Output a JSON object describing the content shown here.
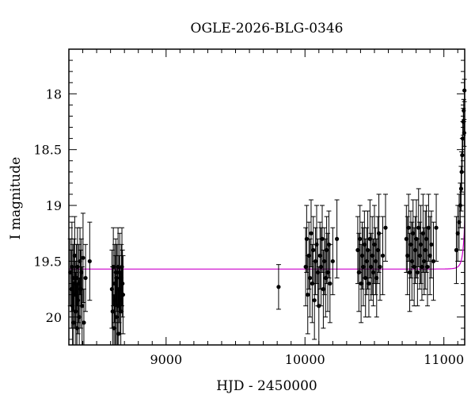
{
  "chart_data": {
    "type": "scatter",
    "title": "OGLE-2026-BLG-0346",
    "xlabel": "HJD - 2450000",
    "ylabel": "I magnitude",
    "xlim": [
      8300,
      11150
    ],
    "ylim": [
      20.25,
      17.6
    ],
    "y_inverted": true,
    "x_ticks": [
      9000,
      10000,
      11000
    ],
    "y_ticks": [
      18,
      18.5,
      19,
      19.5,
      20
    ],
    "colors": {
      "data": "#000000",
      "model": "#cc00cc",
      "frame": "#000000"
    },
    "model": {
      "baseline": 19.57,
      "t0": 11170,
      "tE": 24,
      "u0": 0.1
    },
    "series": [
      {
        "type": "errorbar",
        "points": [
          [
            8310,
            19.6,
            0.3
          ],
          [
            8318,
            19.75,
            0.35
          ],
          [
            8322,
            19.55,
            0.4
          ],
          [
            8326,
            19.9,
            0.35
          ],
          [
            8330,
            19.65,
            0.3
          ],
          [
            8334,
            20.05,
            0.35
          ],
          [
            8338,
            19.7,
            0.4
          ],
          [
            8342,
            19.45,
            0.35
          ],
          [
            8346,
            19.8,
            0.3
          ],
          [
            8350,
            19.95,
            0.35
          ],
          [
            8354,
            19.65,
            0.3
          ],
          [
            8358,
            20.1,
            0.4
          ],
          [
            8362,
            19.55,
            0.35
          ],
          [
            8366,
            19.85,
            0.3
          ],
          [
            8370,
            19.7,
            0.35
          ],
          [
            8375,
            20.0,
            0.35
          ],
          [
            8380,
            19.5,
            0.3
          ],
          [
            8385,
            19.75,
            0.35
          ],
          [
            8390,
            19.6,
            0.3
          ],
          [
            8395,
            19.9,
            0.35
          ],
          [
            8402,
            19.47,
            0.4
          ],
          [
            8408,
            20.05,
            0.3
          ],
          [
            8420,
            19.65,
            0.3
          ],
          [
            8450,
            19.5,
            0.35
          ],
          [
            8610,
            19.75,
            0.35
          ],
          [
            8615,
            19.95,
            0.4
          ],
          [
            8620,
            19.55,
            0.35
          ],
          [
            8625,
            20.1,
            0.3
          ],
          [
            8630,
            19.7,
            0.35
          ],
          [
            8634,
            19.85,
            0.4
          ],
          [
            8638,
            19.6,
            0.3
          ],
          [
            8642,
            20.0,
            0.35
          ],
          [
            8646,
            19.65,
            0.3
          ],
          [
            8650,
            19.9,
            0.35
          ],
          [
            8654,
            19.55,
            0.35
          ],
          [
            8658,
            20.15,
            0.4
          ],
          [
            8662,
            19.75,
            0.3
          ],
          [
            8666,
            19.6,
            0.35
          ],
          [
            8670,
            19.85,
            0.3
          ],
          [
            8674,
            19.95,
            0.35
          ],
          [
            8678,
            19.65,
            0.3
          ],
          [
            8682,
            19.55,
            0.35
          ],
          [
            8686,
            19.7,
            0.3
          ],
          [
            8690,
            19.8,
            0.35
          ],
          [
            9810,
            19.73,
            0.2
          ],
          [
            10005,
            19.55,
            0.35
          ],
          [
            10012,
            19.3,
            0.3
          ],
          [
            10020,
            19.8,
            0.35
          ],
          [
            10028,
            19.45,
            0.3
          ],
          [
            10036,
            19.65,
            0.35
          ],
          [
            10044,
            19.25,
            0.3
          ],
          [
            10052,
            19.7,
            0.35
          ],
          [
            10060,
            19.4,
            0.3
          ],
          [
            10068,
            19.85,
            0.35
          ],
          [
            10076,
            19.5,
            0.3
          ],
          [
            10084,
            19.35,
            0.35
          ],
          [
            10092,
            19.6,
            0.3
          ],
          [
            10100,
            19.9,
            0.35
          ],
          [
            10108,
            19.45,
            0.3
          ],
          [
            10116,
            19.55,
            0.35
          ],
          [
            10124,
            19.3,
            0.3
          ],
          [
            10132,
            19.75,
            0.35
          ],
          [
            10140,
            19.5,
            0.3
          ],
          [
            10148,
            19.65,
            0.35
          ],
          [
            10156,
            19.4,
            0.3
          ],
          [
            10164,
            19.6,
            0.35
          ],
          [
            10172,
            19.35,
            0.3
          ],
          [
            10180,
            19.7,
            0.35
          ],
          [
            10200,
            19.5,
            0.3
          ],
          [
            10230,
            19.3,
            0.35
          ],
          [
            10380,
            19.4,
            0.3
          ],
          [
            10388,
            19.6,
            0.35
          ],
          [
            10396,
            19.3,
            0.3
          ],
          [
            10404,
            19.7,
            0.35
          ],
          [
            10412,
            19.45,
            0.3
          ],
          [
            10420,
            19.55,
            0.35
          ],
          [
            10428,
            19.35,
            0.3
          ],
          [
            10436,
            19.65,
            0.35
          ],
          [
            10444,
            19.5,
            0.3
          ],
          [
            10452,
            19.4,
            0.35
          ],
          [
            10460,
            19.7,
            0.3
          ],
          [
            10468,
            19.3,
            0.35
          ],
          [
            10476,
            19.55,
            0.3
          ],
          [
            10484,
            19.45,
            0.35
          ],
          [
            10492,
            19.6,
            0.3
          ],
          [
            10500,
            19.35,
            0.35
          ],
          [
            10508,
            19.5,
            0.3
          ],
          [
            10516,
            19.65,
            0.35
          ],
          [
            10524,
            19.4,
            0.3
          ],
          [
            10532,
            19.25,
            0.35
          ],
          [
            10540,
            19.55,
            0.3
          ],
          [
            10560,
            19.45,
            0.35
          ],
          [
            10580,
            19.2,
            0.3
          ],
          [
            10730,
            19.3,
            0.3
          ],
          [
            10738,
            19.45,
            0.35
          ],
          [
            10746,
            19.2,
            0.3
          ],
          [
            10754,
            19.6,
            0.35
          ],
          [
            10762,
            19.35,
            0.3
          ],
          [
            10770,
            19.5,
            0.35
          ],
          [
            10778,
            19.25,
            0.3
          ],
          [
            10786,
            19.55,
            0.35
          ],
          [
            10794,
            19.4,
            0.3
          ],
          [
            10802,
            19.3,
            0.35
          ],
          [
            10810,
            19.6,
            0.3
          ],
          [
            10818,
            19.2,
            0.35
          ],
          [
            10826,
            19.45,
            0.3
          ],
          [
            10834,
            19.35,
            0.35
          ],
          [
            10842,
            19.55,
            0.3
          ],
          [
            10850,
            19.25,
            0.35
          ],
          [
            10858,
            19.5,
            0.3
          ],
          [
            10866,
            19.4,
            0.35
          ],
          [
            10874,
            19.3,
            0.3
          ],
          [
            10882,
            19.55,
            0.35
          ],
          [
            10890,
            19.2,
            0.3
          ],
          [
            10900,
            19.45,
            0.35
          ],
          [
            10910,
            19.35,
            0.3
          ],
          [
            10925,
            19.5,
            0.35
          ],
          [
            10945,
            19.2,
            0.3
          ],
          [
            11090,
            19.4,
            0.3
          ],
          [
            11100,
            19.25,
            0.25
          ],
          [
            11110,
            19.15,
            0.25
          ],
          [
            11118,
            19.0,
            0.2
          ],
          [
            11124,
            18.85,
            0.2
          ],
          [
            11128,
            18.7,
            0.18
          ],
          [
            11132,
            18.55,
            0.15
          ],
          [
            11136,
            18.4,
            0.15
          ],
          [
            11140,
            18.25,
            0.12
          ],
          [
            11143,
            18.15,
            0.1
          ],
          [
            11146,
            18.35,
            0.12
          ],
          [
            11148,
            17.97,
            0.1
          ]
        ]
      }
    ]
  }
}
